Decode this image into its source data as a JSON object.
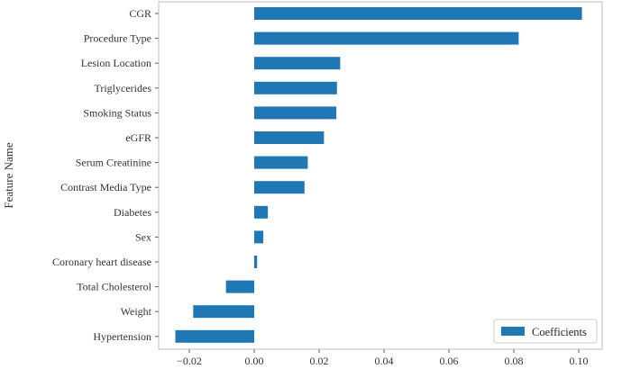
{
  "chart_data": {
    "type": "bar",
    "orientation": "horizontal",
    "ylabel": "Feature Name",
    "xlabel": "",
    "xlim": [
      -0.03,
      0.105
    ],
    "xticks": [
      -0.02,
      0.0,
      0.02,
      0.04,
      0.06,
      0.08,
      0.1
    ],
    "xtick_labels": [
      "−0.02",
      "0.00",
      "0.02",
      "0.04",
      "0.06",
      "0.08",
      "0.10"
    ],
    "categories": [
      "CGR",
      "Procedure Type",
      "Lesion Location",
      "Triglycerides",
      "Smoking Status",
      "eGFR",
      "Serum Creatinine",
      "Contrast Media Type",
      "Diabetes",
      "Sex",
      "Coronary heart disease",
      "Total Cholesterol",
      "Weight",
      "Hypertension"
    ],
    "series": [
      {
        "name": "Coefficients",
        "color": "#1f77b4",
        "values": [
          0.101,
          0.0815,
          0.0265,
          0.0255,
          0.0253,
          0.0215,
          0.0165,
          0.0155,
          0.0042,
          0.0028,
          0.0009,
          -0.0087,
          -0.0188,
          -0.0243
        ]
      }
    ],
    "grid": false,
    "legend": {
      "position": "bottom-right",
      "labels": [
        "Coefficients"
      ]
    }
  }
}
